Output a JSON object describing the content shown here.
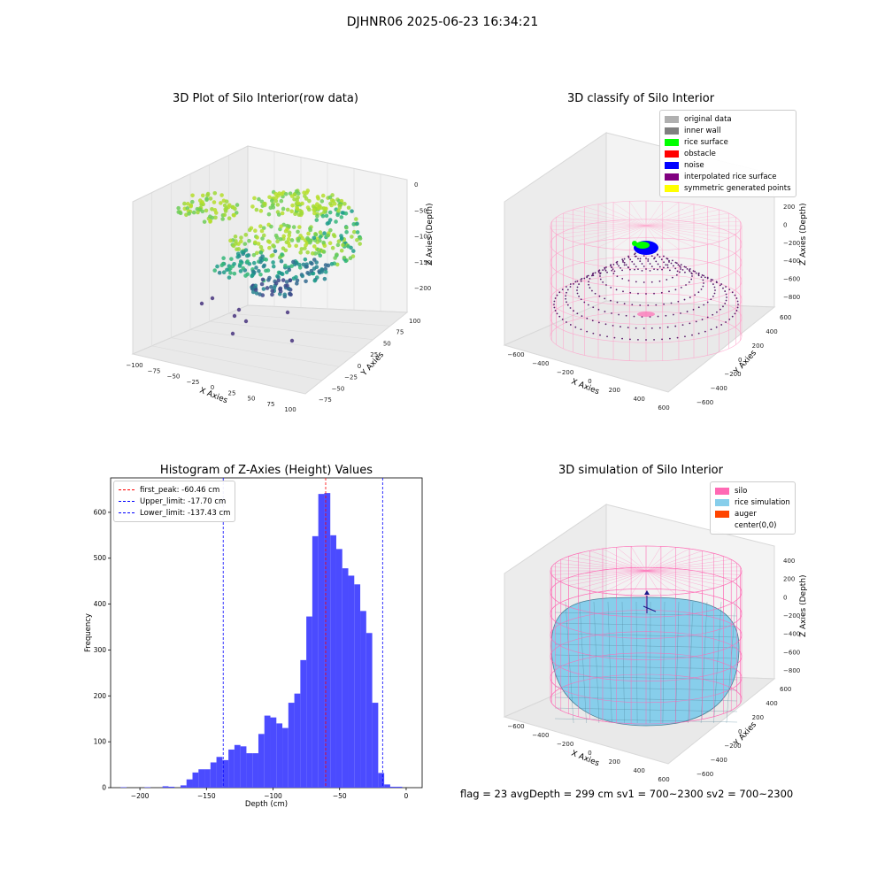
{
  "suptitle": "DJHNR06 2025-06-23 16:34:21",
  "panels": {
    "raw": {
      "title": "3D Plot of Silo Interior(row data)",
      "xlabel": "X Axies",
      "ylabel": "Y Axies",
      "zlabel": "Z Axies (Depth)",
      "xticks": [
        "−100",
        "−75",
        "−50",
        "−25",
        "0",
        "25",
        "50",
        "75",
        "100"
      ],
      "yticks": [
        "−75",
        "−50",
        "−25",
        "0",
        "25",
        "50",
        "75",
        "100"
      ],
      "zticks": [
        "0",
        "−50",
        "−100",
        "−150",
        "−200"
      ]
    },
    "classify": {
      "title": "3D classify of Silo Interior",
      "xlabel": "X Axies",
      "ylabel": "Y Axies",
      "zlabel": "Z Axies (Depth)",
      "xticks": [
        "−600",
        "−400",
        "−200",
        "0",
        "200",
        "400",
        "600"
      ],
      "yticks": [
        "−600",
        "−400",
        "−200",
        "0",
        "200",
        "400",
        "600"
      ],
      "zticks": [
        "200",
        "0",
        "−200",
        "−400",
        "−600",
        "−800"
      ],
      "legend": [
        {
          "label": "original data",
          "color": "#b0b0b0"
        },
        {
          "label": "inner wall",
          "color": "#808080"
        },
        {
          "label": "rice surface",
          "color": "#00ff00"
        },
        {
          "label": "obstacle",
          "color": "#ff0000"
        },
        {
          "label": "noise",
          "color": "#0000ff"
        },
        {
          "label": "interpolated rice surface",
          "color": "#800080"
        },
        {
          "label": "symmetric generated points",
          "color": "#ffff00"
        }
      ]
    },
    "simulation": {
      "title": "3D simulation of Silo Interior",
      "xlabel": "X Axies",
      "ylabel": "Y Axies",
      "zlabel": "Z Axies (Depth)",
      "xticks": [
        "−600",
        "−400",
        "−200",
        "0",
        "200",
        "400",
        "600"
      ],
      "yticks": [
        "−600",
        "−400",
        "−200",
        "0",
        "200",
        "400",
        "600"
      ],
      "zticks": [
        "400",
        "200",
        "0",
        "−200",
        "−400",
        "−600",
        "−800"
      ],
      "legend": [
        {
          "label": "silo",
          "color": "#ff69b4"
        },
        {
          "label": "rice simulation",
          "color": "#87ceeb"
        },
        {
          "label": "auger",
          "color": "#ff4500"
        },
        {
          "label": "center(0,0)",
          "color": "#ffffff"
        }
      ],
      "footer": "flag = 23   avgDepth = 299 cm  sv1 = 700~2300  sv2 = 700~2300"
    }
  },
  "chart_data": {
    "type": "bar",
    "title": "Histogram of Z-Axies (Height) Values",
    "xlabel": "Depth (cm)",
    "ylabel": "Frequency",
    "xlim": [
      -222,
      12
    ],
    "ylim": [
      0,
      675
    ],
    "xticks": [
      -200,
      -150,
      -100,
      -50,
      0
    ],
    "yticks": [
      0,
      100,
      200,
      300,
      400,
      500,
      600
    ],
    "bar_color": "#4b4bff",
    "bin_width": 4.5,
    "bins": [
      {
        "x0": -214.5,
        "count": 1
      },
      {
        "x0": -210.0,
        "count": 0
      },
      {
        "x0": -205.5,
        "count": 0
      },
      {
        "x0": -201.0,
        "count": 0
      },
      {
        "x0": -196.5,
        "count": 1
      },
      {
        "x0": -192.0,
        "count": 0
      },
      {
        "x0": -187.5,
        "count": 0
      },
      {
        "x0": -183.0,
        "count": 3
      },
      {
        "x0": -178.5,
        "count": 2
      },
      {
        "x0": -174.0,
        "count": 0
      },
      {
        "x0": -169.5,
        "count": 5
      },
      {
        "x0": -165.0,
        "count": 18
      },
      {
        "x0": -160.5,
        "count": 33
      },
      {
        "x0": -156.0,
        "count": 40
      },
      {
        "x0": -151.5,
        "count": 40
      },
      {
        "x0": -147.0,
        "count": 55
      },
      {
        "x0": -142.5,
        "count": 67
      },
      {
        "x0": -138.0,
        "count": 60
      },
      {
        "x0": -133.5,
        "count": 83
      },
      {
        "x0": -129.0,
        "count": 93
      },
      {
        "x0": -124.5,
        "count": 90
      },
      {
        "x0": -120.0,
        "count": 75
      },
      {
        "x0": -115.5,
        "count": 75
      },
      {
        "x0": -111.0,
        "count": 117
      },
      {
        "x0": -106.5,
        "count": 157
      },
      {
        "x0": -102.0,
        "count": 153
      },
      {
        "x0": -97.5,
        "count": 140
      },
      {
        "x0": -93.0,
        "count": 130
      },
      {
        "x0": -88.5,
        "count": 185
      },
      {
        "x0": -84.0,
        "count": 205
      },
      {
        "x0": -79.5,
        "count": 278
      },
      {
        "x0": -75.0,
        "count": 373
      },
      {
        "x0": -70.5,
        "count": 548
      },
      {
        "x0": -66.0,
        "count": 640
      },
      {
        "x0": -61.5,
        "count": 642
      },
      {
        "x0": -57.0,
        "count": 550
      },
      {
        "x0": -52.5,
        "count": 520
      },
      {
        "x0": -48.0,
        "count": 478
      },
      {
        "x0": -43.5,
        "count": 462
      },
      {
        "x0": -39.0,
        "count": 443
      },
      {
        "x0": -34.5,
        "count": 385
      },
      {
        "x0": -30.0,
        "count": 337
      },
      {
        "x0": -25.5,
        "count": 185
      },
      {
        "x0": -21.0,
        "count": 32
      },
      {
        "x0": -16.5,
        "count": 7
      },
      {
        "x0": -12.0,
        "count": 2
      },
      {
        "x0": -7.5,
        "count": 2
      }
    ],
    "vlines": [
      {
        "label": "first_peak: -60.46 cm",
        "x": -60.46,
        "color": "#ff0000"
      },
      {
        "label": "Upper_limit: -17.70 cm",
        "x": -17.7,
        "color": "#0000ff"
      },
      {
        "label": "Lower_limit: -137.43 cm",
        "x": -137.43,
        "color": "#0000ff"
      }
    ],
    "legend_position": "upper left"
  }
}
